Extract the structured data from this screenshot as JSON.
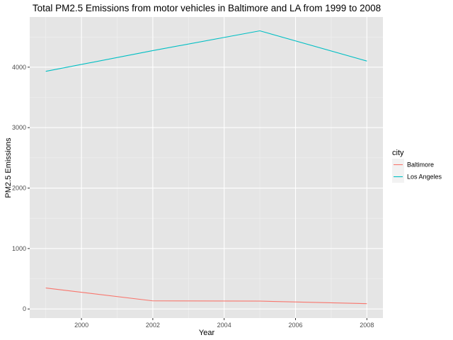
{
  "chart_data": {
    "type": "line",
    "title": "Total PM2.5 Emissions from motor vehicles in Baltimore and LA from 1999 to 2008",
    "xlabel": "Year",
    "ylabel": "PM2.5 Emissions",
    "x": [
      1999,
      2002,
      2005,
      2008
    ],
    "xlim": [
      1998.55,
      2008.45
    ],
    "ylim": [
      -150,
      4830
    ],
    "xticks": [
      2000,
      2002,
      2004,
      2006,
      2008
    ],
    "xtick_labels": [
      "2000",
      "2002",
      "2004",
      "2006",
      "2008"
    ],
    "yticks": [
      0,
      1000,
      2000,
      3000,
      4000
    ],
    "ytick_labels": [
      "0",
      "1000",
      "2000",
      "3000",
      "4000"
    ],
    "grid": true,
    "legend": {
      "title": "city",
      "placement": "right"
    },
    "series": [
      {
        "name": "Baltimore",
        "color": "#F8766D",
        "values": [
          346.8,
          134.3,
          130.4,
          88.3
        ]
      },
      {
        "name": "Los Angeles",
        "color": "#00BFC4",
        "values": [
          3931.1,
          4274.0,
          4601.4,
          4101.3
        ]
      }
    ]
  }
}
